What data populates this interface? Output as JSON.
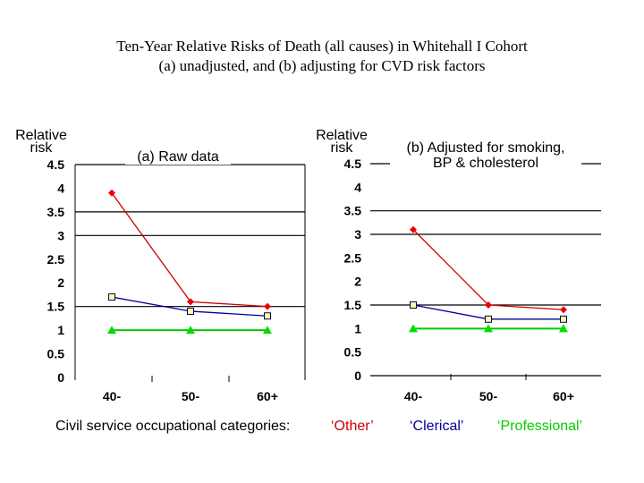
{
  "title_line1": "Ten-Year Relative Risks of Death (all causes) in Whitehall I Cohort",
  "title_line2": "(a) unadjusted, and (b) adjusting for CVD risk factors",
  "legend": {
    "prefix": "Civil service occupational categories:",
    "items": [
      {
        "label": "‘Other’",
        "color": "#cc0000"
      },
      {
        "label": "‘Clerical’",
        "color": "#000099"
      },
      {
        "label": "‘Professional’",
        "color": "#00cc00"
      }
    ]
  },
  "chart_data": [
    {
      "type": "line",
      "title": "(a) Raw data",
      "ylabel_line1": "Relative",
      "ylabel_line2": "risk",
      "categories": [
        "40-",
        "50-",
        "60+"
      ],
      "yticks": [
        "0",
        "0.5",
        "1",
        "1.5",
        "2",
        "2.5",
        "3",
        "3.5",
        "4",
        "4.5"
      ],
      "ylim": [
        0,
        4.5
      ],
      "gridlines": [
        1.5,
        3,
        3.5,
        4.5
      ],
      "series": [
        {
          "name": "‘Other’",
          "color": "#cc0000",
          "marker": "diamond",
          "values": [
            3.9,
            1.6,
            1.5
          ]
        },
        {
          "name": "‘Clerical’",
          "color": "#000099",
          "marker": "square",
          "values": [
            1.7,
            1.4,
            1.3
          ]
        },
        {
          "name": "‘Professional’",
          "color": "#00cc00",
          "marker": "triangle",
          "values": [
            1,
            1,
            1
          ]
        }
      ]
    },
    {
      "type": "line",
      "title_line1": "(b) Adjusted for smoking,",
      "title_line2": "BP & cholesterol",
      "ylabel_line1": "Relative",
      "ylabel_line2": "risk",
      "categories": [
        "40-",
        "50-",
        "60+"
      ],
      "yticks": [
        "0",
        "0.5",
        "1",
        "1.5",
        "2",
        "2.5",
        "3",
        "3.5",
        "4",
        "4.5"
      ],
      "ylim": [
        0,
        4.5
      ],
      "gridlines": [
        0,
        1.5,
        3,
        3.5,
        4.5
      ],
      "series": [
        {
          "name": "‘Other’",
          "color": "#cc0000",
          "marker": "diamond",
          "values": [
            3.1,
            1.5,
            1.4
          ]
        },
        {
          "name": "‘Clerical’",
          "color": "#000099",
          "marker": "square",
          "values": [
            1.5,
            1.2,
            1.2
          ]
        },
        {
          "name": "‘Professional’",
          "color": "#00cc00",
          "marker": "triangle",
          "values": [
            1,
            1,
            1
          ]
        }
      ]
    }
  ]
}
